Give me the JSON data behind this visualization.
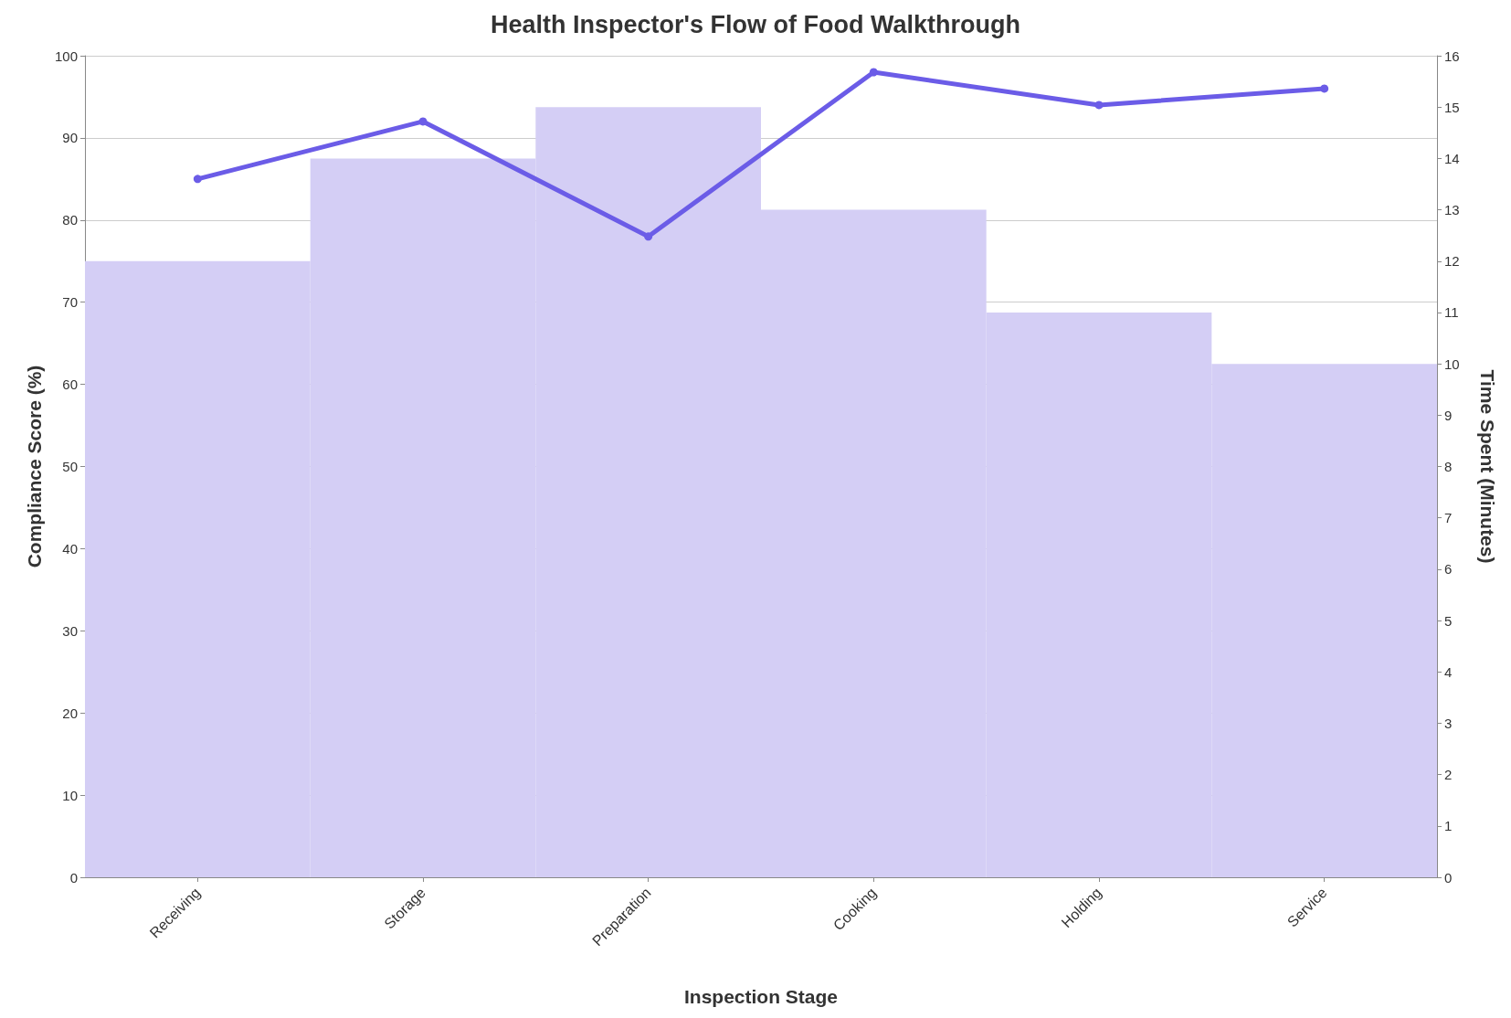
{
  "chart_data": {
    "type": "line",
    "title": "Health Inspector's Flow of Food Walkthrough",
    "xlabel": "Inspection Stage",
    "ylabel": "Compliance Score (%)",
    "y2label": "Time Spent (Minutes)",
    "categories": [
      "Receiving",
      "Storage",
      "Preparation",
      "Cooking",
      "Holding",
      "Service"
    ],
    "series": [
      {
        "type": "bar",
        "axis": "y2",
        "color": "#d4cef5",
        "values": [
          12,
          14,
          15,
          13,
          11,
          10
        ]
      },
      {
        "color": "#6b5ce7",
        "values": [
          85,
          92,
          78,
          98,
          94,
          96
        ]
      }
    ],
    "ylim": [
      0,
      100
    ],
    "yticks": [
      0,
      10,
      20,
      30,
      40,
      50,
      60,
      70,
      80,
      90,
      100
    ],
    "y2lim": [
      0,
      16
    ],
    "y2ticks": [
      0,
      1,
      2,
      3,
      4,
      5,
      6,
      7,
      8,
      9,
      10,
      11,
      12,
      13,
      14,
      15,
      16
    ],
    "grid": "y",
    "marker": "circle",
    "line_style": "solid"
  }
}
